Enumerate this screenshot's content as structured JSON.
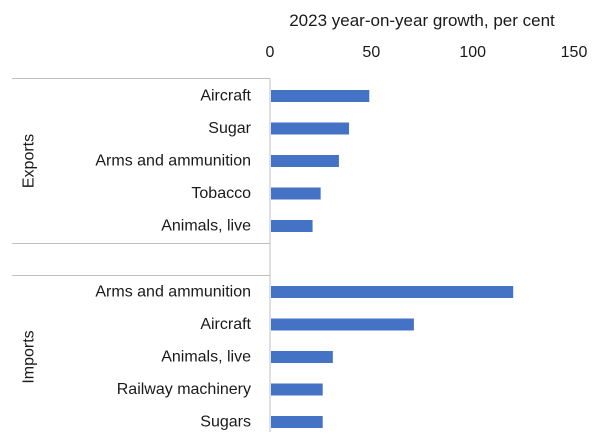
{
  "chart_data": {
    "type": "bar",
    "orientation": "horizontal",
    "title": "2023 year-on-year growth, per cent",
    "xlim": [
      0,
      150
    ],
    "xticks": [
      0,
      50,
      100,
      150
    ],
    "x_axis_position": "top",
    "grid": false,
    "color": "#4472c4",
    "groups": [
      {
        "name": "Exports",
        "categories": [
          "Aircraft",
          "Sugar",
          "Arms and ammunition",
          "Tobacco",
          "Animals, live"
        ],
        "values": [
          49,
          39,
          34,
          25,
          21
        ]
      },
      {
        "name": "Imports",
        "categories": [
          "Arms and ammunition",
          "Aircraft",
          "Animals, live",
          "Railway machinery",
          "Sugars"
        ],
        "values": [
          120,
          71,
          31,
          26,
          26
        ]
      }
    ]
  }
}
